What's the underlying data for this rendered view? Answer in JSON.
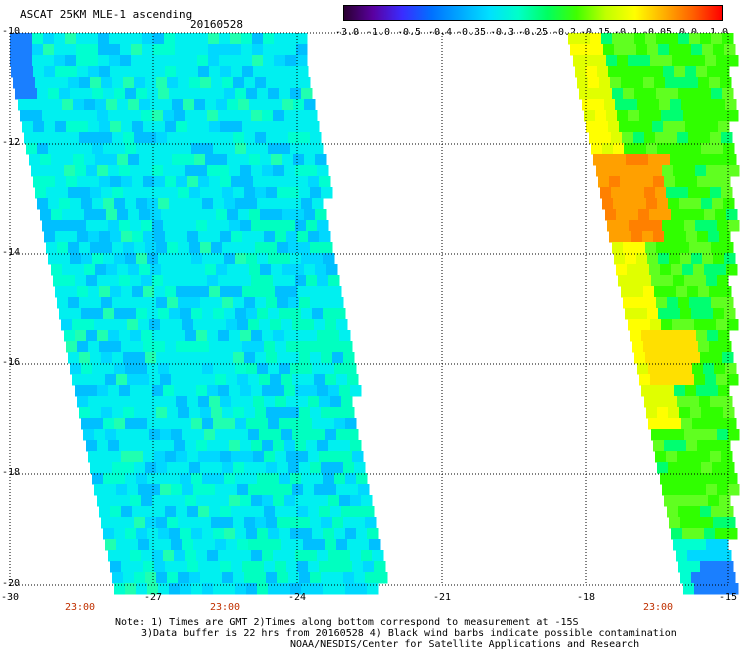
{
  "header": {
    "title": "ASCAT 25KM MLE-1 ascending",
    "date": "20160528"
  },
  "colorbar": {
    "ticks": [
      "-3.0",
      "-1.0",
      "-0.5",
      "-0.4",
      "-0.35",
      "-0.3",
      "-0.25",
      "-0.2",
      "-0.15",
      "-0.1",
      "-0.05",
      "0.0",
      "1.0"
    ],
    "colors": [
      "#2a0030",
      "#5a00a0",
      "#3a2cff",
      "#0070ff",
      "#00a8ff",
      "#00e0ff",
      "#00ffc8",
      "#00ff60",
      "#40ff00",
      "#c0ff00",
      "#ffff00",
      "#ffb000",
      "#ff6000",
      "#ff0000"
    ]
  },
  "map": {
    "lat_labels": [
      "-10",
      "-12",
      "-14",
      "-16",
      "-18",
      "-20"
    ],
    "lon_labels": [
      "-30",
      "-27",
      "-24",
      "-21",
      "-18",
      "-15"
    ],
    "lat_range": [
      -20,
      -10
    ],
    "lon_range": [
      -30,
      -15
    ],
    "time_labels": [
      {
        "text": "23:00",
        "lon": -28.5
      },
      {
        "text": "23:00",
        "lon": -25.5
      },
      {
        "text": "23:00",
        "lon": -16.5
      }
    ]
  },
  "notes": {
    "line1": "Note: 1) Times are GMT 2)Times along bottom correspond to measurement at -15S",
    "line2": "3)Data buffer is 22 hrs from 20160528 4) Black wind barbs indicate possible contamination",
    "line3": "NOAA/NESDIS/Center for Satellite Applications and Research"
  }
}
